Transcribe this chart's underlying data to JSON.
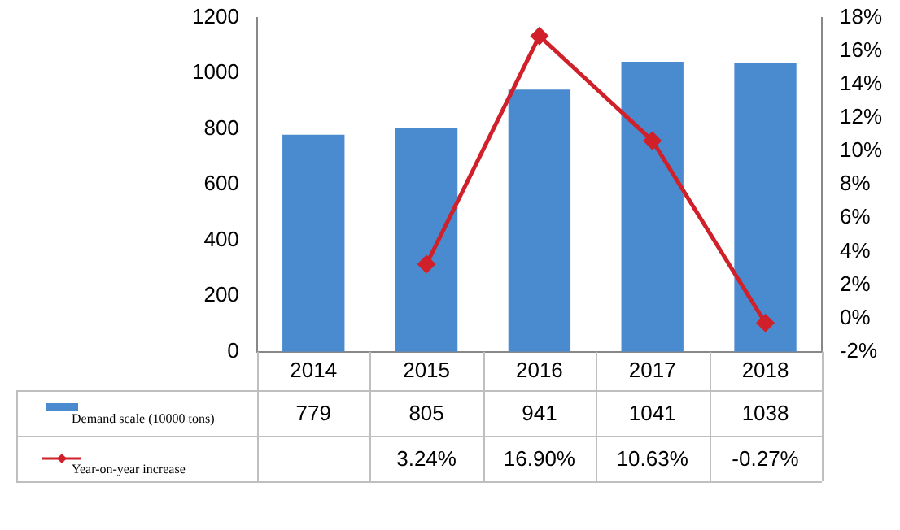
{
  "chart_data": {
    "type": "bar",
    "categories": [
      "2014",
      "2015",
      "2016",
      "2017",
      "2018"
    ],
    "series": [
      {
        "name": "Demand scale (10000 tons)",
        "color": "#4a8bd0",
        "values": [
          779,
          805,
          941,
          1041,
          1038
        ],
        "value_labels": [
          "779",
          "805",
          "941",
          "1041",
          "1038"
        ]
      },
      {
        "name": "Year-on-year increase",
        "type": "line",
        "axis": "y2",
        "color": "#d0202a",
        "values": [
          null,
          3.24,
          16.9,
          10.63,
          -0.27
        ],
        "value_labels": [
          null,
          "3.24%",
          "16.90%",
          "10.63%",
          "-0.27%"
        ]
      }
    ],
    "ylim": [
      0,
      1200
    ],
    "yticks": [
      0,
      200,
      400,
      600,
      800,
      1000,
      1200
    ],
    "y2lim": [
      -2,
      18
    ],
    "y2ticks": [
      {
        "value": -2,
        "label": "-2%"
      },
      {
        "value": 0,
        "label": "0%"
      },
      {
        "value": 2,
        "label": "2%"
      },
      {
        "value": 4,
        "label": "4%"
      },
      {
        "value": 6,
        "label": "6%"
      },
      {
        "value": 8,
        "label": "8%"
      },
      {
        "value": 10,
        "label": "10%"
      },
      {
        "value": 12,
        "label": "12%"
      },
      {
        "value": 14,
        "label": "14%"
      },
      {
        "value": 16,
        "label": "16%"
      },
      {
        "value": 18,
        "label": "18%"
      }
    ],
    "marker": "diamond",
    "legend": "bottom",
    "grid": false
  }
}
